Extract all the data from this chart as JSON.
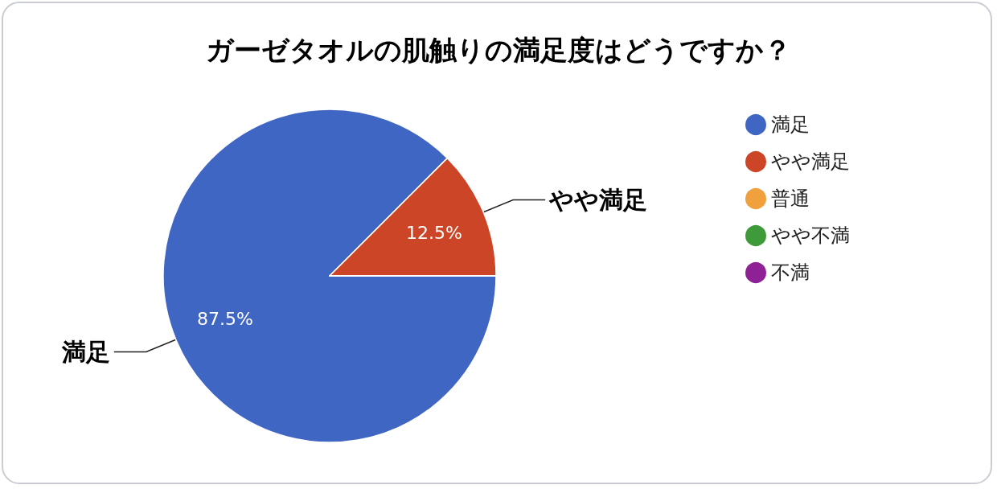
{
  "chart_data": {
    "type": "pie",
    "title": "ガーゼタオルの肌触りの満足度はどうですか？",
    "categories": [
      "満足",
      "やや満足",
      "普通",
      "やや不満",
      "不満"
    ],
    "values": [
      87.5,
      12.5,
      0,
      0,
      0
    ],
    "value_labels": [
      "87.5%",
      "12.5%",
      null,
      null,
      null
    ],
    "colors": [
      "#4066c4",
      "#cc4527",
      "#f0a03c",
      "#3f9a3a",
      "#8e2196"
    ],
    "legend": "right"
  }
}
